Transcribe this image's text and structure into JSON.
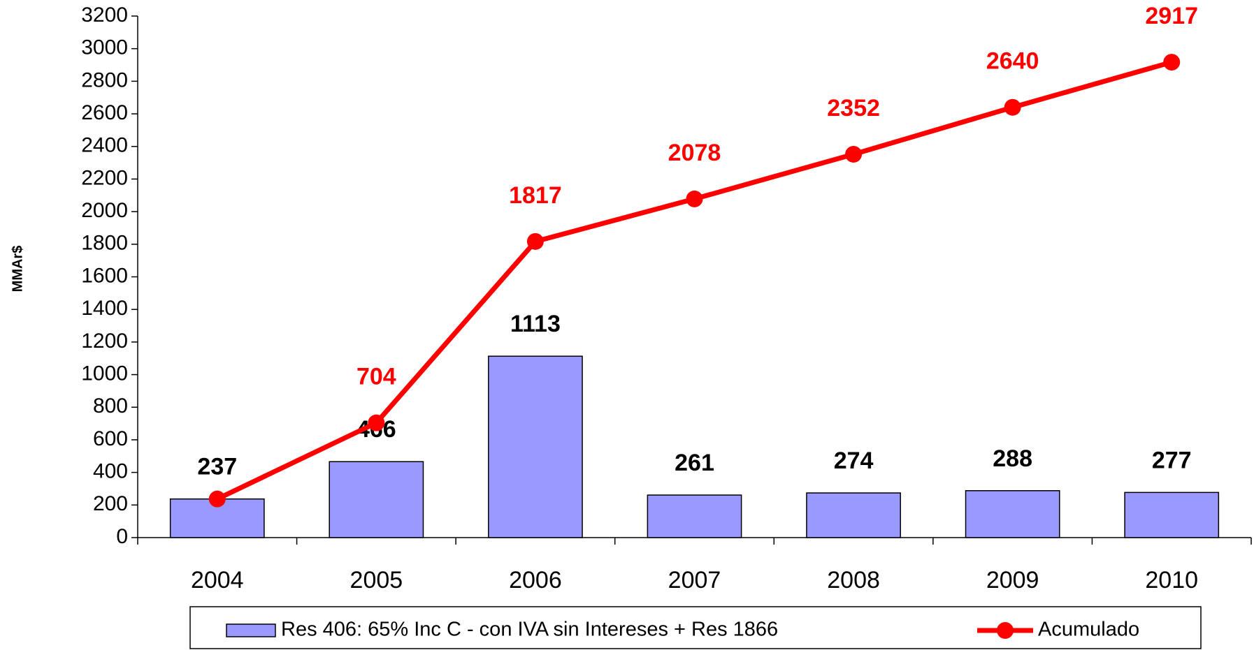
{
  "chart_data": {
    "type": "bar",
    "y_label": "MMAr$",
    "categories": [
      "2004",
      "2005",
      "2006",
      "2007",
      "2008",
      "2009",
      "2010"
    ],
    "series": [
      {
        "name": "Res 406: 65% Inc C - con IVA sin Intereses + Res 1866",
        "type": "bar",
        "color": "#9999ff",
        "values": [
          237,
          466,
          1113,
          261,
          274,
          288,
          277
        ]
      },
      {
        "name": "Acumulado",
        "type": "line",
        "color": "#ff0000",
        "values": [
          237,
          704,
          1817,
          2078,
          2352,
          2640,
          2917
        ]
      }
    ],
    "ylim": [
      0,
      3200
    ],
    "yticks": [
      0,
      200,
      400,
      600,
      800,
      1000,
      1200,
      1400,
      1600,
      1800,
      2000,
      2200,
      2400,
      2600,
      2800,
      3000,
      3200
    ],
    "grid": false
  }
}
